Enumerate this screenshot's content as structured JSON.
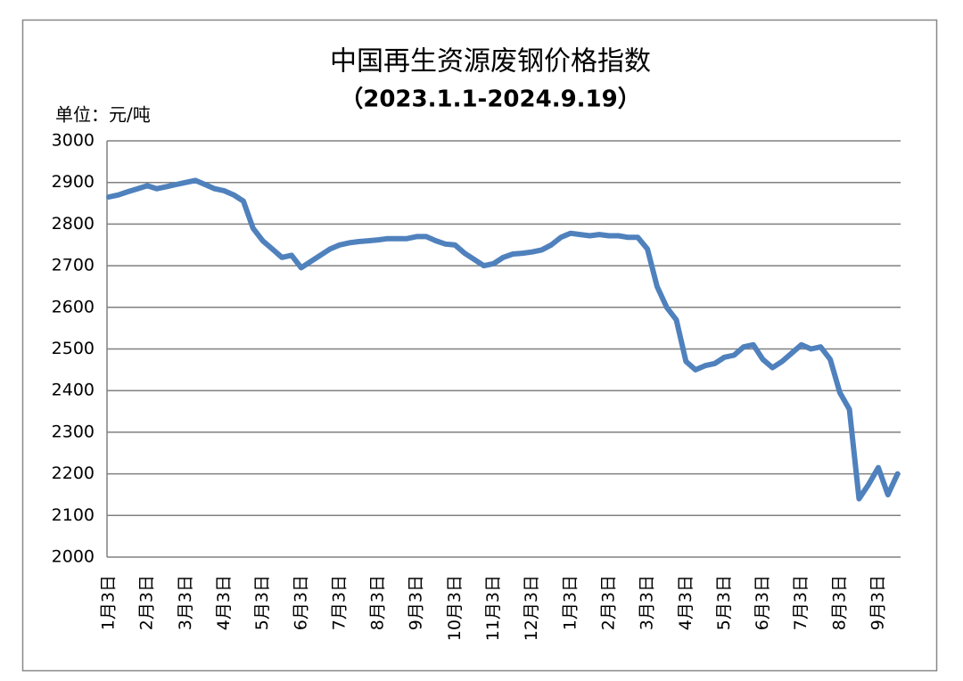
{
  "chart_data": {
    "type": "line",
    "title": "中国再生资源废钢价格指数",
    "subtitle": "（2023.1.1-2024.9.19）",
    "unit_label": "单位：元/吨",
    "categories": [
      "1月3日",
      null,
      null,
      null,
      "2月3日",
      null,
      null,
      null,
      "3月3日",
      null,
      null,
      null,
      "4月3日",
      null,
      null,
      null,
      "5月3日",
      null,
      null,
      null,
      "6月3日",
      null,
      null,
      null,
      "7月3日",
      null,
      null,
      null,
      "8月3日",
      null,
      null,
      null,
      "9月3日",
      null,
      null,
      null,
      "10月3日",
      null,
      null,
      null,
      "11月3日",
      null,
      null,
      null,
      "12月3日",
      null,
      null,
      null,
      "1月3日",
      null,
      null,
      null,
      "2月3日",
      null,
      null,
      null,
      "3月3日",
      null,
      null,
      null,
      "4月3日",
      null,
      null,
      null,
      "5月3日",
      null,
      null,
      null,
      "6月3日",
      null,
      null,
      null,
      "7月3日",
      null,
      null,
      null,
      "8月3日",
      null,
      null,
      null,
      "9月3日",
      null,
      null
    ],
    "values": [
      2865,
      2870,
      2878,
      2885,
      2892,
      2885,
      2890,
      2895,
      2900,
      2905,
      2895,
      2885,
      2880,
      2870,
      2855,
      2790,
      2760,
      2740,
      2720,
      2725,
      2695,
      2710,
      2725,
      2740,
      2750,
      2755,
      2758,
      2760,
      2762,
      2765,
      2765,
      2765,
      2770,
      2770,
      2760,
      2752,
      2750,
      2730,
      2715,
      2700,
      2705,
      2720,
      2728,
      2730,
      2733,
      2738,
      2750,
      2768,
      2778,
      2775,
      2772,
      2775,
      2772,
      2772,
      2768,
      2768,
      2740,
      2650,
      2600,
      2570,
      2470,
      2450,
      2460,
      2465,
      2480,
      2485,
      2505,
      2510,
      2475,
      2455,
      2470,
      2490,
      2510,
      2500,
      2505,
      2475,
      2395,
      2355,
      2140,
      2175,
      2215,
      2150,
      2200
    ],
    "color": "#4f81bd",
    "ylim": [
      2000,
      3000
    ],
    "yticks": [
      2000,
      2100,
      2200,
      2300,
      2400,
      2500,
      2600,
      2700,
      2800,
      2900,
      3000
    ],
    "grid": true
  }
}
